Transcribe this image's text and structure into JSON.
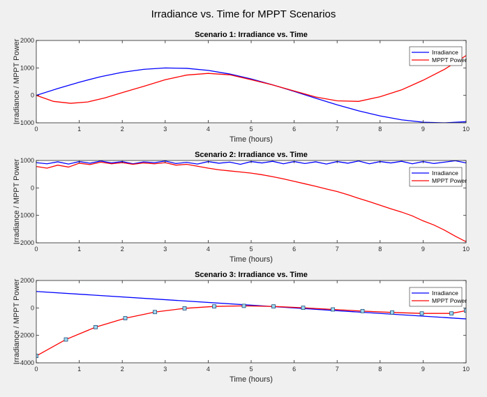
{
  "figure": {
    "title": "Irradiance vs. Time for MPPT Scenarios",
    "background": "#f0f0f0"
  },
  "chart_data": [
    {
      "type": "line",
      "title": "Scenario 1: Irradiance vs. Time",
      "xlabel": "Time (hours)",
      "ylabel": "Irradiance / MPPT Power",
      "xlim": [
        0,
        10
      ],
      "ylim": [
        -1000,
        2000
      ],
      "xticks": [
        0,
        1,
        2,
        3,
        4,
        5,
        6,
        7,
        8,
        9,
        10
      ],
      "yticks": [
        -1000,
        0,
        1000,
        2000
      ],
      "legend": "top-right",
      "grid": false,
      "series": [
        {
          "name": "Irradiance",
          "color": "#0000ff",
          "x": [
            0,
            0.5,
            1,
            1.5,
            2,
            2.5,
            3,
            3.5,
            4,
            4.5,
            5,
            5.5,
            6,
            6.5,
            7,
            7.5,
            8,
            8.5,
            9,
            9.5,
            10
          ],
          "y": [
            0,
            248,
            479,
            682,
            841,
            949,
            998,
            984,
            909,
            778,
            598,
            383,
            145,
            -104,
            -346,
            -564,
            -750,
            -891,
            -977,
            -1000,
            -960
          ]
        },
        {
          "name": "MPPT Power",
          "color": "#ff0000",
          "x": [
            0,
            0.4,
            0.8,
            1.2,
            1.6,
            2,
            2.5,
            3,
            3.5,
            4,
            4.5,
            5,
            5.5,
            6,
            6.5,
            7,
            7.5,
            8,
            8.5,
            9,
            9.5,
            10
          ],
          "y": [
            0,
            -220,
            -290,
            -240,
            -90,
            100,
            330,
            570,
            740,
            800,
            750,
            570,
            380,
            160,
            -60,
            -200,
            -220,
            -50,
            200,
            550,
            950,
            1450
          ]
        }
      ]
    },
    {
      "type": "line",
      "title": "Scenario 2: Irradiance vs. Time",
      "xlabel": "Time (hours)",
      "ylabel": "Irradiance / MPPT Power",
      "xlim": [
        0,
        10
      ],
      "ylim": [
        -2000,
        1000
      ],
      "xticks": [
        0,
        1,
        2,
        3,
        4,
        5,
        6,
        7,
        8,
        9,
        10
      ],
      "yticks": [
        -2000,
        -1000,
        0,
        1000
      ],
      "legend": "middle-right",
      "grid": false,
      "series": [
        {
          "name": "Irradiance",
          "color": "#0000ff",
          "x": [
            0,
            0.25,
            0.5,
            0.75,
            1,
            1.25,
            1.5,
            1.75,
            2,
            2.25,
            2.5,
            2.75,
            3,
            3.25,
            3.5,
            3.75,
            4,
            4.25,
            4.5,
            4.75,
            5,
            5.25,
            5.5,
            5.75,
            6,
            6.25,
            6.5,
            6.75,
            7,
            7.25,
            7.5,
            7.75,
            8,
            8.25,
            8.5,
            8.75,
            9,
            9.25,
            9.5,
            9.75,
            10
          ],
          "y": [
            920,
            880,
            950,
            870,
            960,
            900,
            980,
            910,
            960,
            880,
            950,
            920,
            980,
            890,
            930,
            870,
            960,
            900,
            940,
            860,
            960,
            910,
            970,
            880,
            960,
            890,
            950,
            870,
            960,
            900,
            980,
            880,
            960,
            910,
            970,
            880,
            960,
            890,
            940,
            990,
            910
          ]
        },
        {
          "name": "MPPT Power",
          "color": "#ff0000",
          "x": [
            0,
            0.25,
            0.5,
            0.75,
            1,
            1.25,
            1.5,
            1.75,
            2,
            2.25,
            2.5,
            2.75,
            3,
            3.25,
            3.5,
            3.75,
            4,
            4.25,
            4.5,
            4.75,
            5,
            5.25,
            5.5,
            5.75,
            6,
            6.25,
            6.5,
            6.75,
            7,
            7.25,
            7.5,
            7.75,
            8,
            8.25,
            8.5,
            8.75,
            9,
            9.25,
            9.5,
            9.75,
            10
          ],
          "y": [
            780,
            720,
            830,
            760,
            900,
            850,
            940,
            880,
            920,
            860,
            910,
            880,
            920,
            830,
            860,
            790,
            720,
            660,
            620,
            580,
            540,
            480,
            410,
            330,
            240,
            150,
            60,
            -40,
            -130,
            -250,
            -380,
            -500,
            -630,
            -760,
            -880,
            -1020,
            -1200,
            -1350,
            -1540,
            -1760,
            -1960
          ]
        }
      ]
    },
    {
      "type": "line",
      "title": "Scenario 3: Irradiance vs. Time",
      "xlabel": "Time (hours)",
      "ylabel": "Irradiance / MPPT Power",
      "xlim": [
        0,
        10
      ],
      "ylim": [
        -4000,
        2000
      ],
      "xticks": [
        0,
        1,
        2,
        3,
        4,
        5,
        6,
        7,
        8,
        9,
        10
      ],
      "yticks": [
        -4000,
        -2000,
        0,
        2000
      ],
      "legend": "top-right",
      "grid": false,
      "series": [
        {
          "name": "Irradiance",
          "color": "#0000ff",
          "x": [
            0,
            10
          ],
          "y": [
            1200,
            -800
          ]
        },
        {
          "name": "MPPT Power",
          "color": "#ff0000",
          "marker": "square",
          "x": [
            0,
            0.69,
            1.38,
            2.07,
            2.76,
            3.45,
            4.14,
            4.83,
            5.52,
            6.21,
            6.9,
            7.59,
            8.28,
            8.97,
            9.66,
            10
          ],
          "y": [
            -3500,
            -2300,
            -1400,
            -750,
            -300,
            -30,
            110,
            150,
            110,
            10,
            -110,
            -230,
            -330,
            -400,
            -400,
            -200
          ]
        }
      ]
    }
  ]
}
